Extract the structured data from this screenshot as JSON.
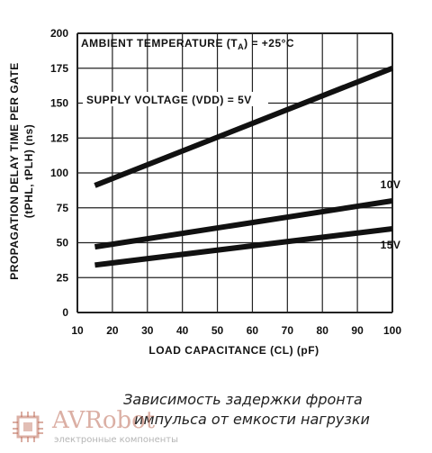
{
  "chart_data": {
    "type": "line",
    "title": "",
    "xlabel": "LOAD CAPACITANCE (CL) (pF)",
    "ylabel_line1": "PROPAGATION DELAY TIME PER GATE",
    "ylabel_line2": "(tPHL, tPLH) (ns)",
    "xlim": [
      10,
      100
    ],
    "ylim": [
      0,
      200
    ],
    "x_ticks": [
      10,
      20,
      30,
      40,
      50,
      60,
      70,
      80,
      90,
      100
    ],
    "y_ticks": [
      0,
      25,
      50,
      75,
      100,
      125,
      150,
      175,
      200
    ],
    "grid": true,
    "series": [
      {
        "name": "5V",
        "x": [
          15,
          100
        ],
        "y": [
          91,
          175
        ],
        "label": ""
      },
      {
        "name": "10V",
        "x": [
          15,
          100
        ],
        "y": [
          47,
          80
        ],
        "label": "10V"
      },
      {
        "name": "15V",
        "x": [
          15,
          100
        ],
        "y": [
          34,
          60
        ],
        "label": "15V"
      }
    ],
    "annotations": {
      "ambient": "AMBIENT TEMPERATURE (T",
      "ambient_sub": "A",
      "ambient_tail": ") = +25°C",
      "supply": "SUPPLY VOLTAGE (VDD) = 5V"
    }
  },
  "caption": {
    "line1": "Зависимость задержки фронта",
    "line2": "импульса от емкости нагрузки"
  },
  "watermark": {
    "brand": "AVRobot",
    "subtitle": "электронные компоненты"
  },
  "colors": {
    "line": "#111111",
    "grid": "#222222"
  }
}
